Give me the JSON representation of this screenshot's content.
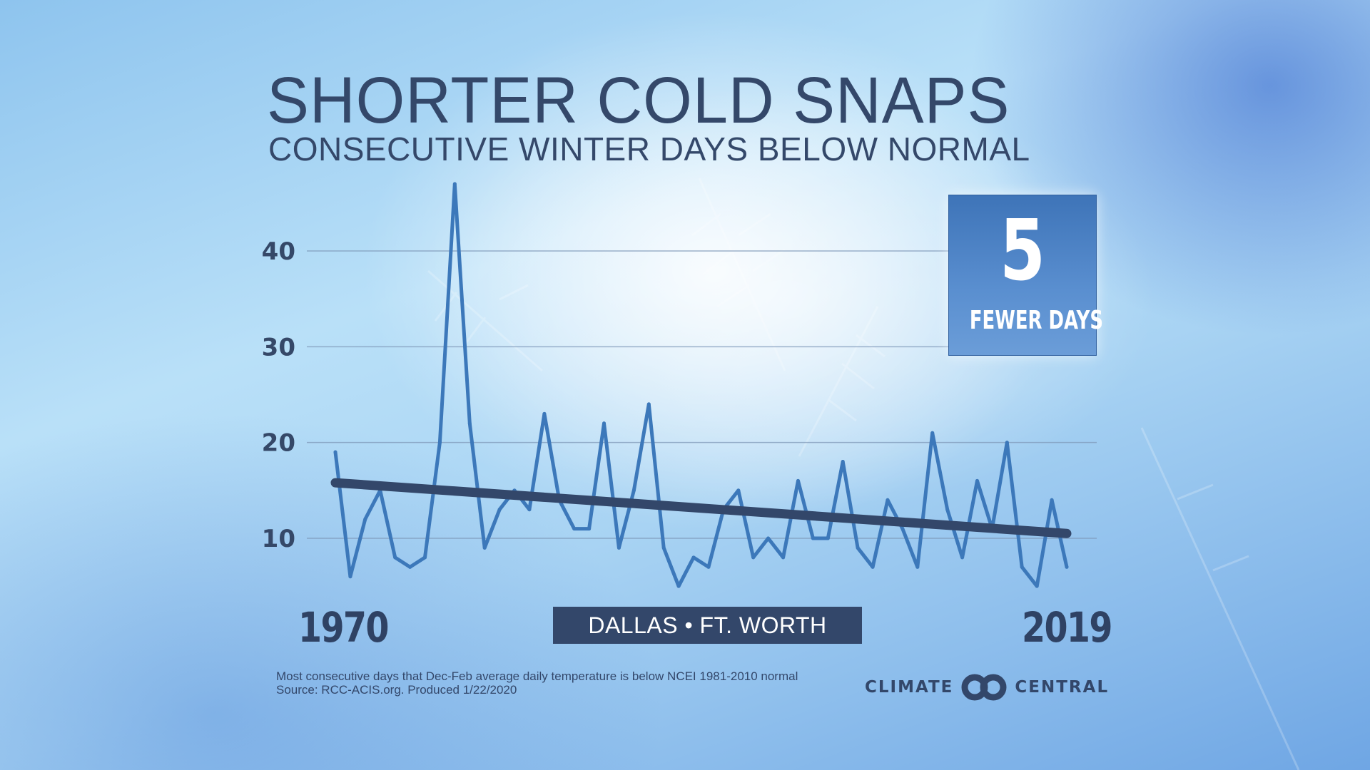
{
  "title": "SHORTER COLD SNAPS",
  "subtitle": "CONSECUTIVE WINTER DAYS BELOW NORMAL",
  "location": "DALLAS • FT. WORTH",
  "callout": {
    "number": "5",
    "label": "FEWER DAYS"
  },
  "footnote": {
    "line1": "Most consecutive days that  Dec-Feb average daily temperature is  below NCEI 1981-2010 normal",
    "line2": "Source: RCC-ACIS.org. Produced 1/22/2020"
  },
  "logo": {
    "left": "CLIMATE",
    "right": "CENTRAL"
  },
  "colors": {
    "series": "#3c78ba",
    "trend": "#33476a",
    "text": "#34486a",
    "callout": "#4a80c4"
  },
  "chart_data": {
    "type": "line",
    "x_start_label": "1970",
    "x_end_label": "2019",
    "x": [
      1970,
      1971,
      1972,
      1973,
      1974,
      1975,
      1976,
      1977,
      1978,
      1979,
      1980,
      1981,
      1982,
      1983,
      1984,
      1985,
      1986,
      1987,
      1988,
      1989,
      1990,
      1991,
      1992,
      1993,
      1994,
      1995,
      1996,
      1997,
      1998,
      1999,
      2000,
      2001,
      2002,
      2003,
      2004,
      2005,
      2006,
      2007,
      2008,
      2009,
      2010,
      2011,
      2012,
      2013,
      2014,
      2015,
      2016,
      2017,
      2018,
      2019
    ],
    "series": [
      {
        "values": [
          19,
          6,
          12,
          15,
          8,
          7,
          8,
          20,
          47,
          22,
          9,
          13,
          15,
          13,
          23,
          14,
          11,
          11,
          22,
          9,
          15,
          24,
          9,
          5,
          8,
          7,
          13,
          15,
          8,
          10,
          8,
          16,
          10,
          10,
          18,
          9,
          7,
          14,
          11,
          7,
          21,
          13,
          8,
          16,
          11,
          20,
          7,
          5,
          14,
          7
        ]
      }
    ],
    "trend": {
      "start": 15.8,
      "end": 10.5
    },
    "y_ticks": [
      10,
      20,
      30,
      40
    ],
    "ylim": [
      3,
      48
    ],
    "grid": true
  }
}
